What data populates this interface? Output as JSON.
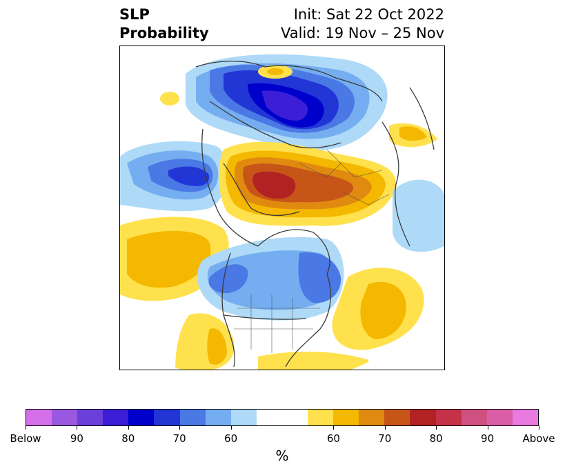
{
  "title": {
    "left_line1": "SLP",
    "left_line2": "Probability",
    "right_line1": "Init: Sat 22 Oct 2022",
    "right_line2": "Valid: 19 Nov – 25 Nov"
  },
  "colorbar": {
    "unit": "%",
    "segments": [
      "#d56fe8",
      "#9a58e0",
      "#6b3fda",
      "#3b1ed6",
      "#0000cd",
      "#2236d6",
      "#4a78e4",
      "#75aef0",
      "#aedaf8",
      "#ffffff",
      "#ffffff",
      "#ffe14d",
      "#f4b800",
      "#e08a10",
      "#c85518",
      "#b22222",
      "#c43248",
      "#d05082",
      "#db5ea8",
      "#e87ae0"
    ],
    "segment_weights": [
      1,
      1,
      1,
      1,
      1,
      1,
      1,
      1,
      1,
      1,
      1,
      1,
      1,
      1,
      1,
      1,
      1,
      1,
      1,
      1
    ],
    "ticks": [
      "Below",
      "90",
      "80",
      "70",
      "60",
      "60",
      "70",
      "80",
      "90",
      "Above"
    ]
  },
  "map": {
    "projection": "north-polar-stereographic",
    "field": "SLP probability above/below normal"
  }
}
